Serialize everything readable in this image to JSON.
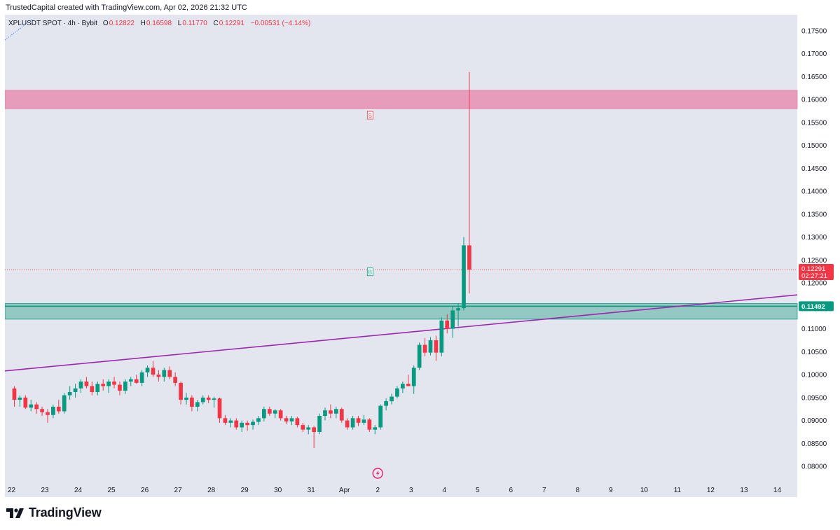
{
  "caption": "TrustedCapital created with TradingView.com, Apr 02, 2026 21:32 UTC",
  "footer": {
    "brand": "TradingView"
  },
  "symbol_header": {
    "symbol": "XPLUSDT SPOT · 4h · Bybit",
    "o_label": "O",
    "o_value": "0.12822",
    "h_label": "H",
    "h_value": "0.16598",
    "l_label": "L",
    "l_value": "0.11770",
    "c_label": "C",
    "c_value": "0.12291",
    "change": "−0.00531 (−4.14%)"
  },
  "colors": {
    "up": "#089981",
    "down": "#f23645",
    "background": "#e4e6ef",
    "resistance_zone": "#e89cbb",
    "support_zone": "#93c8c3",
    "trendline": "#9c27b0",
    "current_price_tag": "#f23645",
    "support_tag": "#089981"
  },
  "chart_data": {
    "type": "candlestick",
    "symbol": "XPLUSDT",
    "timeframe": "4h",
    "y_axis": {
      "ticks": [
        "0.17500",
        "0.17000",
        "0.16500",
        "0.16000",
        "0.15500",
        "0.15000",
        "0.14500",
        "0.14000",
        "0.13500",
        "0.13000",
        "0.12500",
        "0.12000",
        "0.11500",
        "0.11000",
        "0.10500",
        "0.10000",
        "0.09500",
        "0.09000",
        "0.08500",
        "0.08000"
      ],
      "range": [
        0.0765,
        0.1785
      ]
    },
    "x_axis": {
      "ticks": [
        "22",
        "23",
        "24",
        "25",
        "26",
        "27",
        "28",
        "29",
        "30",
        "31",
        "Apr",
        "2",
        "3",
        "4",
        "5",
        "6",
        "7",
        "8",
        "9",
        "10",
        "11",
        "12",
        "13",
        "14"
      ],
      "start_day_offset": -0.2,
      "end_day_offset": 23.6
    },
    "candles_per_day": 6,
    "candles": [
      [
        0.097,
        0.0975,
        0.093,
        0.0945
      ],
      [
        0.0945,
        0.0955,
        0.093,
        0.095
      ],
      [
        0.095,
        0.0955,
        0.0925,
        0.0928
      ],
      [
        0.0928,
        0.0945,
        0.092,
        0.0935
      ],
      [
        0.0935,
        0.094,
        0.0915,
        0.0925
      ],
      [
        0.0925,
        0.093,
        0.091,
        0.0918
      ],
      [
        0.0918,
        0.0925,
        0.0895,
        0.0912
      ],
      [
        0.0912,
        0.0935,
        0.0905,
        0.093
      ],
      [
        0.093,
        0.0945,
        0.0915,
        0.092
      ],
      [
        0.092,
        0.096,
        0.0915,
        0.0955
      ],
      [
        0.0955,
        0.0975,
        0.0945,
        0.0962
      ],
      [
        0.0962,
        0.098,
        0.095,
        0.097
      ],
      [
        0.097,
        0.099,
        0.096,
        0.0985
      ],
      [
        0.0985,
        0.0995,
        0.097,
        0.0975
      ],
      [
        0.0975,
        0.0985,
        0.0955,
        0.0962
      ],
      [
        0.0962,
        0.0985,
        0.0955,
        0.098
      ],
      [
        0.098,
        0.099,
        0.0965,
        0.0975
      ],
      [
        0.0975,
        0.099,
        0.096,
        0.0985
      ],
      [
        0.0985,
        0.0995,
        0.097,
        0.0978
      ],
      [
        0.0978,
        0.0985,
        0.0955,
        0.0965
      ],
      [
        0.0965,
        0.099,
        0.0958,
        0.0985
      ],
      [
        0.0985,
        0.0995,
        0.0975,
        0.099
      ],
      [
        0.099,
        0.1,
        0.098,
        0.0982
      ],
      [
        0.0982,
        0.101,
        0.0975,
        0.1005
      ],
      [
        0.1005,
        0.102,
        0.0995,
        0.1015
      ],
      [
        0.1015,
        0.103,
        0.0995,
        0.1
      ],
      [
        0.1,
        0.101,
        0.0985,
        0.0995
      ],
      [
        0.0995,
        0.1015,
        0.0985,
        0.101
      ],
      [
        0.101,
        0.1018,
        0.099,
        0.0995
      ],
      [
        0.0995,
        0.1005,
        0.0975,
        0.0982
      ],
      [
        0.0982,
        0.0985,
        0.0935,
        0.0945
      ],
      [
        0.0945,
        0.096,
        0.0935,
        0.095
      ],
      [
        0.095,
        0.0955,
        0.092,
        0.093
      ],
      [
        0.093,
        0.0945,
        0.092,
        0.094
      ],
      [
        0.094,
        0.0955,
        0.0935,
        0.095
      ],
      [
        0.095,
        0.0955,
        0.0938,
        0.0945
      ],
      [
        0.0945,
        0.0952,
        0.0928,
        0.0948
      ],
      [
        0.0948,
        0.095,
        0.0895,
        0.0905
      ],
      [
        0.0905,
        0.0912,
        0.089,
        0.0895
      ],
      [
        0.0895,
        0.0905,
        0.0885,
        0.09
      ],
      [
        0.09,
        0.0905,
        0.088,
        0.0885
      ],
      [
        0.0885,
        0.09,
        0.0875,
        0.0895
      ],
      [
        0.0895,
        0.09,
        0.0878,
        0.089
      ],
      [
        0.089,
        0.0902,
        0.088,
        0.0897
      ],
      [
        0.0897,
        0.091,
        0.089,
        0.0905
      ],
      [
        0.0905,
        0.093,
        0.0898,
        0.0925
      ],
      [
        0.0925,
        0.093,
        0.091,
        0.0915
      ],
      [
        0.0915,
        0.0925,
        0.0905,
        0.0922
      ],
      [
        0.0922,
        0.0925,
        0.09,
        0.0905
      ],
      [
        0.0905,
        0.091,
        0.0892,
        0.0898
      ],
      [
        0.0898,
        0.091,
        0.089,
        0.0905
      ],
      [
        0.0905,
        0.0908,
        0.0885,
        0.089
      ],
      [
        0.089,
        0.0895,
        0.0875,
        0.088
      ],
      [
        0.088,
        0.089,
        0.087,
        0.0885
      ],
      [
        0.0885,
        0.0888,
        0.084,
        0.0875
      ],
      [
        0.0875,
        0.0915,
        0.087,
        0.091
      ],
      [
        0.091,
        0.0928,
        0.09,
        0.0922
      ],
      [
        0.0922,
        0.0935,
        0.0905,
        0.0915
      ],
      [
        0.0915,
        0.093,
        0.0905,
        0.0925
      ],
      [
        0.0925,
        0.0928,
        0.0895,
        0.09
      ],
      [
        0.09,
        0.0905,
        0.088,
        0.0885
      ],
      [
        0.0885,
        0.091,
        0.088,
        0.0905
      ],
      [
        0.0905,
        0.091,
        0.0888,
        0.0895
      ],
      [
        0.0895,
        0.0912,
        0.089,
        0.0902
      ],
      [
        0.0902,
        0.0905,
        0.0875,
        0.088
      ],
      [
        0.088,
        0.089,
        0.087,
        0.0885
      ],
      [
        0.0885,
        0.0935,
        0.088,
        0.0932
      ],
      [
        0.0932,
        0.0948,
        0.0922,
        0.0942
      ],
      [
        0.0942,
        0.0958,
        0.0935,
        0.0952
      ],
      [
        0.0952,
        0.0975,
        0.0948,
        0.097
      ],
      [
        0.097,
        0.0985,
        0.096,
        0.098
      ],
      [
        0.098,
        0.1,
        0.0975,
        0.0975
      ],
      [
        0.0975,
        0.102,
        0.0958,
        0.1015
      ],
      [
        0.1015,
        0.107,
        0.101,
        0.1065
      ],
      [
        0.1065,
        0.108,
        0.104,
        0.1048
      ],
      [
        0.1048,
        0.1082,
        0.1042,
        0.1075
      ],
      [
        0.1075,
        0.1085,
        0.103,
        0.1048
      ],
      [
        0.1048,
        0.1125,
        0.104,
        0.1118
      ],
      [
        0.1118,
        0.1132,
        0.109,
        0.11
      ],
      [
        0.11,
        0.115,
        0.108,
        0.114
      ],
      [
        0.114,
        0.1155,
        0.1105,
        0.1145
      ],
      [
        0.1145,
        0.13,
        0.114,
        0.1282
      ],
      [
        0.1282,
        0.166,
        0.1177,
        0.1229
      ]
    ],
    "current_price": 0.12291,
    "countdown": "02:27:21",
    "zones": [
      {
        "name": "resistance",
        "from": 0.158,
        "to": 0.162
      },
      {
        "name": "support",
        "from": 0.1121,
        "to": 0.1155,
        "line": 0.11492,
        "label": "0.11492"
      }
    ],
    "trendline": {
      "from": {
        "day": -0.2,
        "price": 0.1008
      },
      "to": {
        "day": 23.6,
        "price": 0.1174
      }
    },
    "markers": [
      {
        "label": "S",
        "day": 10.77,
        "price": 0.1565
      },
      {
        "label": "B",
        "day": 10.77,
        "price": 0.12235
      }
    ]
  }
}
